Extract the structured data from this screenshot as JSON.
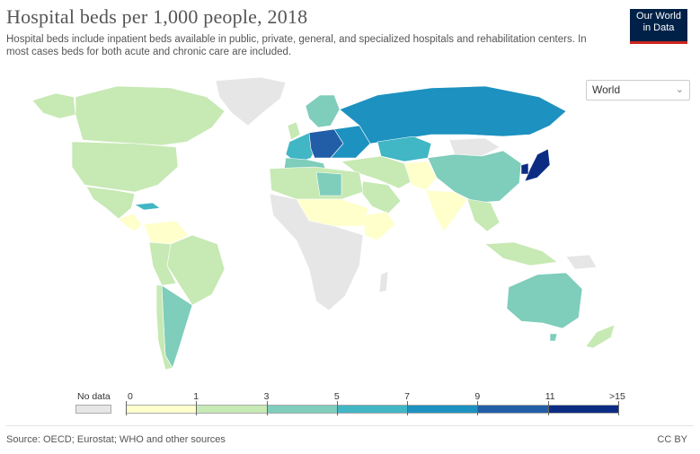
{
  "header": {
    "title": "Hospital beds per 1,000 people, 2018",
    "subtitle": "Hospital beds include inpatient beds available in public, private, general, and specialized hospitals and rehabilitation centers. In most cases beds for both acute and chronic care are included."
  },
  "logo": {
    "line1": "Our World",
    "line2": "in Data"
  },
  "region_select": {
    "value": "World",
    "icon": "chevron-down-icon"
  },
  "legend": {
    "no_data_label": "No data",
    "no_data_color": "#e6e6e6",
    "ticks": [
      "0",
      "1",
      "3",
      "5",
      "7",
      "9",
      "11",
      ">15"
    ],
    "colors": [
      "#ffffcc",
      "#c7e9b4",
      "#7fcdbb",
      "#41b6c4",
      "#1d91c0",
      "#225ea8",
      "#0c2c84"
    ]
  },
  "footer": {
    "source": "Source: OECD; Eurostat; WHO and other sources",
    "license": "CC BY"
  },
  "map_colors": {
    "no_data": "#e6e6e6",
    "bin_0_1": "#ffffcc",
    "bin_1_3": "#c7e9b4",
    "bin_3_5": "#7fcdbb",
    "bin_5_7": "#41b6c4",
    "bin_7_9": "#1d91c0",
    "bin_9_11": "#225ea8",
    "bin_11_15": "#0c2c84"
  }
}
